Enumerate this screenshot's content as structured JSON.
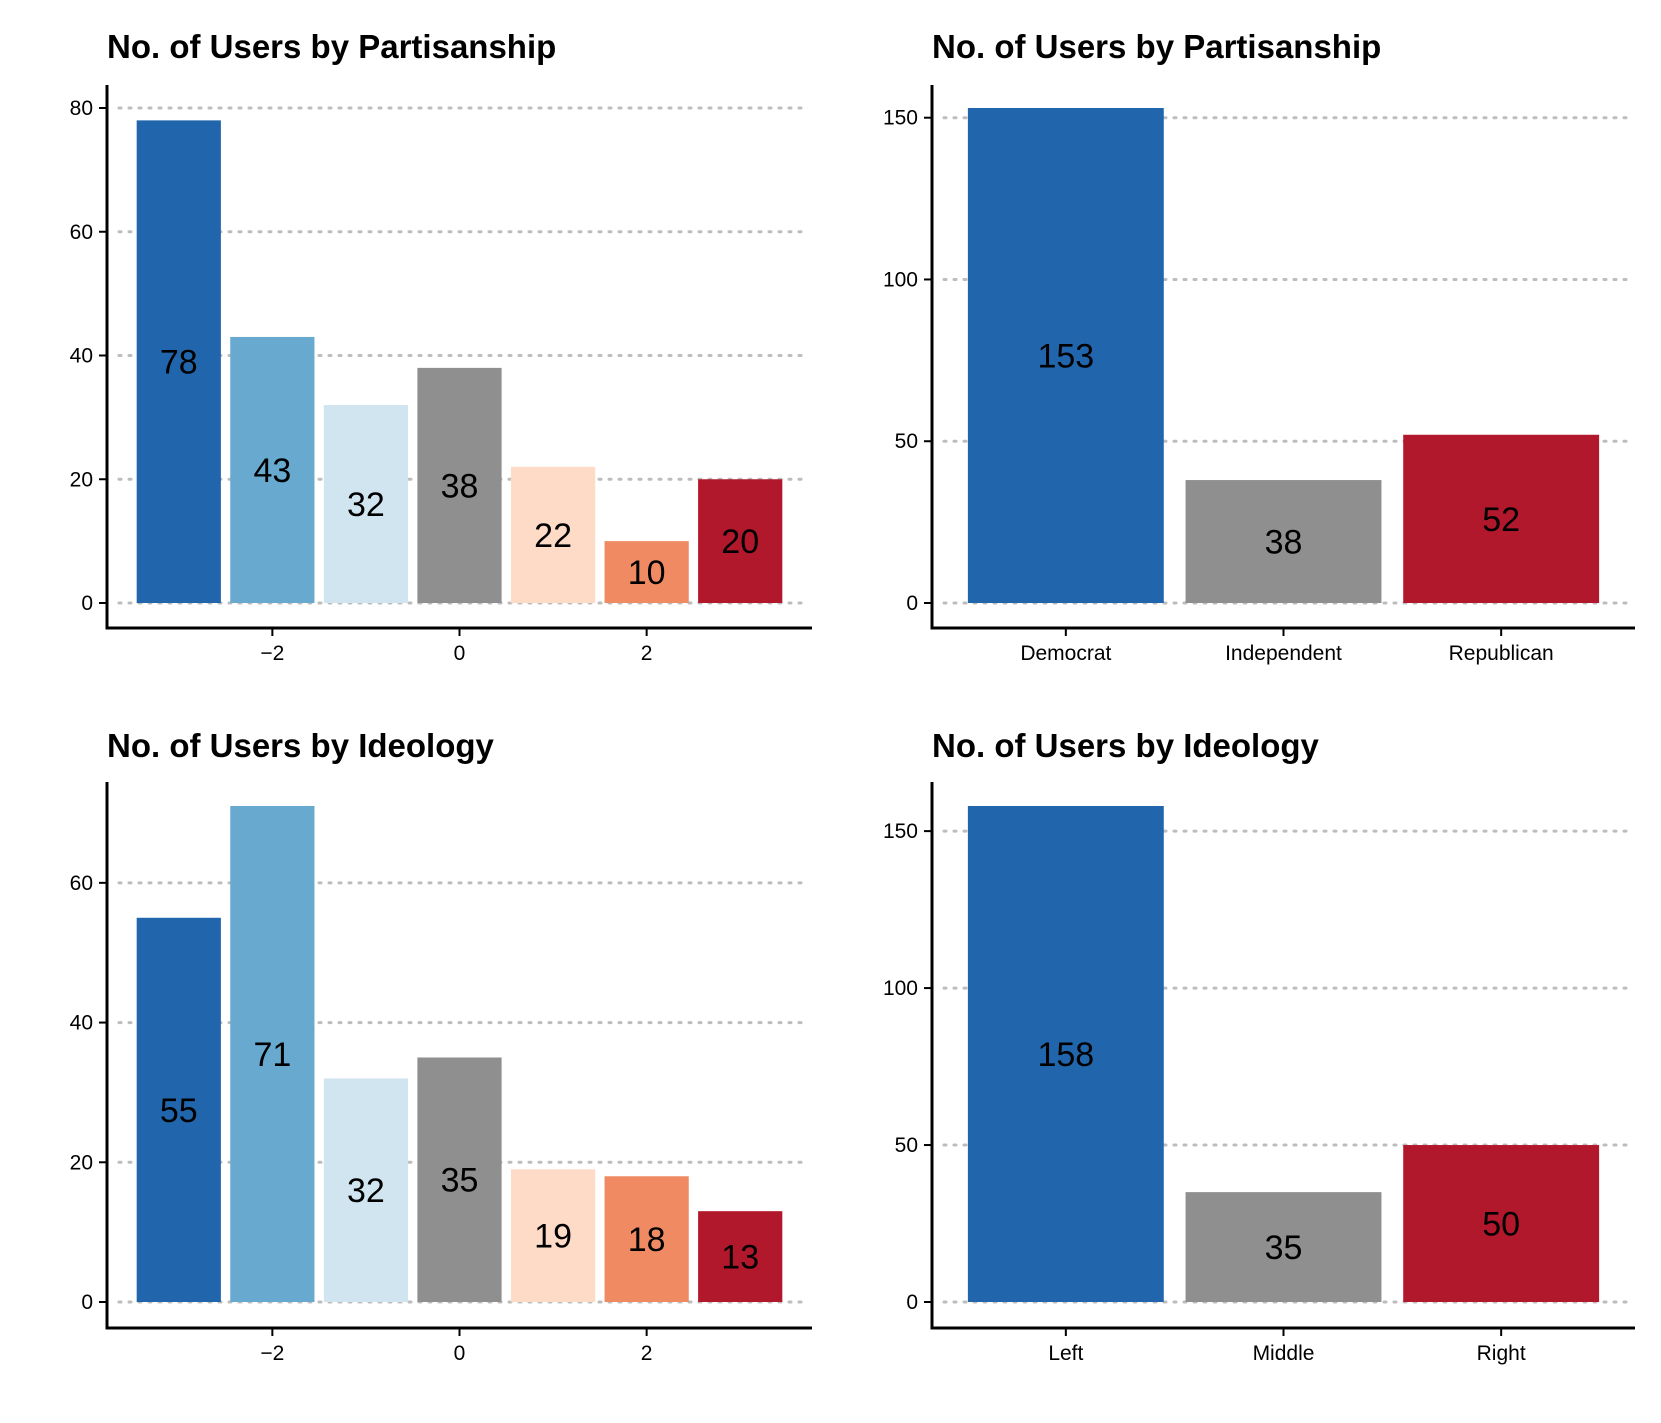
{
  "chart_data": [
    {
      "type": "bar",
      "title": "No. of Users by Partisanship",
      "x": [
        -3,
        -2,
        -1,
        0,
        1,
        2,
        3
      ],
      "values": [
        78,
        43,
        32,
        38,
        22,
        10,
        20
      ],
      "colors": [
        "#2166ac",
        "#67a9cf",
        "#d1e5f0",
        "#8f8f8f",
        "#fddbc7",
        "#ef8a62",
        "#b2182b"
      ],
      "xticks": [
        -2,
        0,
        2
      ],
      "xtick_labels": [
        "−2",
        "0",
        "2"
      ],
      "yticks": [
        0,
        20,
        40,
        60,
        80
      ],
      "ytick_labels": [
        "0",
        "20",
        "40",
        "60",
        "80"
      ],
      "xlim": [
        -3.5,
        3.5
      ],
      "ylim": [
        0,
        80
      ],
      "xlabel": "",
      "ylabel": "",
      "grid": "horizontal dotted",
      "legend": "none"
    },
    {
      "type": "bar",
      "title": "No. of Users by Partisanship",
      "categories": [
        "Democrat",
        "Independent",
        "Republican"
      ],
      "values": [
        153,
        38,
        52
      ],
      "colors": [
        "#2166ac",
        "#8f8f8f",
        "#b2182b"
      ],
      "yticks": [
        0,
        50,
        100,
        150
      ],
      "ytick_labels": [
        "0",
        "50",
        "100",
        "150"
      ],
      "ylim": [
        0,
        153
      ],
      "xlabel": "",
      "ylabel": "",
      "grid": "horizontal dotted",
      "legend": "none"
    },
    {
      "type": "bar",
      "title": "No. of Users by Ideology",
      "x": [
        -3,
        -2,
        -1,
        0,
        1,
        2,
        3
      ],
      "values": [
        55,
        71,
        32,
        35,
        19,
        18,
        13
      ],
      "colors": [
        "#2166ac",
        "#67a9cf",
        "#d1e5f0",
        "#8f8f8f",
        "#fddbc7",
        "#ef8a62",
        "#b2182b"
      ],
      "xticks": [
        -2,
        0,
        2
      ],
      "xtick_labels": [
        "−2",
        "0",
        "2"
      ],
      "yticks": [
        0,
        20,
        40,
        60
      ],
      "ytick_labels": [
        "0",
        "20",
        "40",
        "60"
      ],
      "xlim": [
        -3.5,
        3.5
      ],
      "ylim": [
        0,
        71
      ],
      "xlabel": "",
      "ylabel": "",
      "grid": "horizontal dotted",
      "legend": "none"
    },
    {
      "type": "bar",
      "title": "No. of Users by Ideology",
      "categories": [
        "Left",
        "Middle",
        "Right"
      ],
      "values": [
        158,
        35,
        50
      ],
      "colors": [
        "#2166ac",
        "#8f8f8f",
        "#b2182b"
      ],
      "yticks": [
        0,
        50,
        100,
        150
      ],
      "ytick_labels": [
        "0",
        "50",
        "100",
        "150"
      ],
      "ylim": [
        0,
        158
      ],
      "xlabel": "",
      "ylabel": "",
      "grid": "horizontal dotted",
      "legend": "none"
    }
  ]
}
